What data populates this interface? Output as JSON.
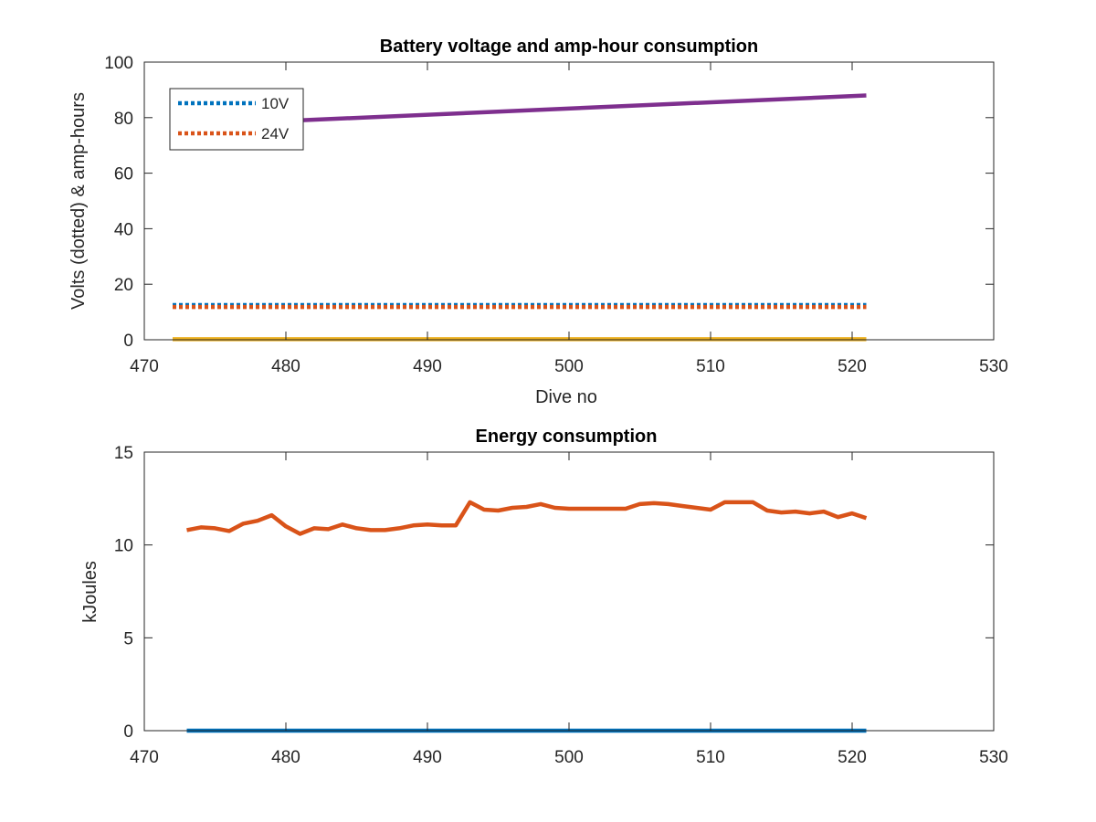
{
  "chart_data": [
    {
      "type": "line",
      "title": "Battery voltage and amp-hour consumption",
      "xlabel": "Dive no",
      "ylabel": "Volts (dotted) & amp-hours",
      "xlim": [
        470,
        530
      ],
      "ylim": [
        0,
        100
      ],
      "xticks": [
        "470",
        "480",
        "490",
        "500",
        "510",
        "520",
        "530"
      ],
      "yticks": [
        "0",
        "20",
        "40",
        "60",
        "80",
        "100"
      ],
      "grid": false,
      "legend_position": "top-left",
      "series": [
        {
          "name": "10V",
          "style": "dotted",
          "color": "#0072BD",
          "x": [
            472,
            521
          ],
          "y": [
            12.5,
            12.5
          ],
          "in_legend": true
        },
        {
          "name": "24V",
          "style": "dotted",
          "color": "#D95319",
          "x": [
            472,
            521
          ],
          "y": [
            11.8,
            11.8
          ],
          "in_legend": true
        },
        {
          "style": "solid",
          "color": "#EDB120",
          "x": [
            472,
            521
          ],
          "y": [
            0.2,
            0.2
          ],
          "in_legend": false
        },
        {
          "style": "solid",
          "color": "#7E2F8E",
          "x": [
            472,
            521
          ],
          "y": [
            77,
            88
          ],
          "in_legend": false
        }
      ]
    },
    {
      "type": "line",
      "title": "Energy consumption",
      "xlabel": "",
      "ylabel": "kJoules",
      "xlim": [
        470,
        530
      ],
      "ylim": [
        0,
        15
      ],
      "xticks": [
        "470",
        "480",
        "490",
        "500",
        "510",
        "520",
        "530"
      ],
      "yticks": [
        "0",
        "5",
        "10",
        "15"
      ],
      "grid": false,
      "series": [
        {
          "style": "solid",
          "color": "#0072BD",
          "x": [
            473,
            521
          ],
          "y": [
            0,
            0
          ]
        },
        {
          "style": "solid",
          "color": "#D95319",
          "x": [
            473,
            474,
            475,
            476,
            477,
            478,
            479,
            480,
            481,
            482,
            483,
            484,
            485,
            486,
            487,
            488,
            489,
            490,
            491,
            492,
            493,
            494,
            495,
            496,
            497,
            498,
            499,
            500,
            501,
            502,
            503,
            504,
            505,
            506,
            507,
            508,
            509,
            510,
            511,
            512,
            513,
            514,
            515,
            516,
            517,
            518,
            519,
            520,
            521
          ],
          "y": [
            10.8,
            10.95,
            10.9,
            10.75,
            11.15,
            11.3,
            11.6,
            11.0,
            10.6,
            10.9,
            10.85,
            11.1,
            10.9,
            10.8,
            10.8,
            10.9,
            11.05,
            11.1,
            11.05,
            11.05,
            12.3,
            11.9,
            11.85,
            12.0,
            12.05,
            12.2,
            12.0,
            11.95,
            11.95,
            11.95,
            11.95,
            11.95,
            12.2,
            12.25,
            12.2,
            12.1,
            12.0,
            11.9,
            12.3,
            12.3,
            12.3,
            11.85,
            11.75,
            11.8,
            11.7,
            11.8,
            11.5,
            11.7,
            11.45
          ]
        }
      ]
    }
  ]
}
